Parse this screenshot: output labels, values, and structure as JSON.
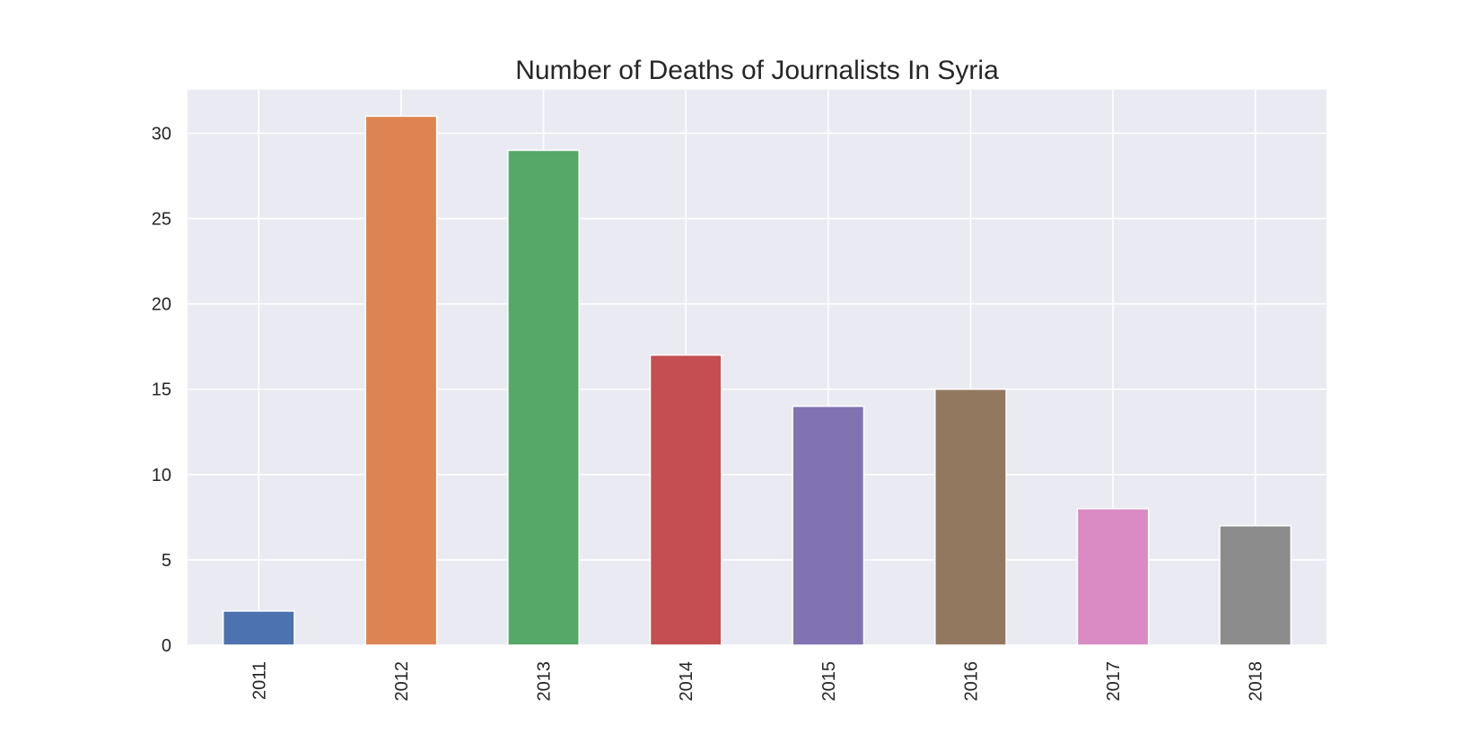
{
  "chart_data": {
    "type": "bar",
    "title": "Number of Deaths of Journalists In Syria",
    "xlabel": "",
    "ylabel": "",
    "categories": [
      "2011",
      "2012",
      "2013",
      "2014",
      "2015",
      "2016",
      "2017",
      "2018"
    ],
    "values": [
      2,
      31,
      29,
      17,
      14,
      15,
      8,
      7
    ],
    "colors": [
      "#4c72b0",
      "#dd8452",
      "#55a868",
      "#c44e52",
      "#8172b3",
      "#937860",
      "#da8bc3",
      "#8c8c8c"
    ],
    "ylim": [
      0,
      32.55
    ],
    "yticks": [
      0,
      5,
      10,
      15,
      20,
      25,
      30
    ],
    "grid": true,
    "background_color": "#eaeaf2",
    "grid_color": "#ffffff",
    "x_tick_rotation": "vertical"
  }
}
